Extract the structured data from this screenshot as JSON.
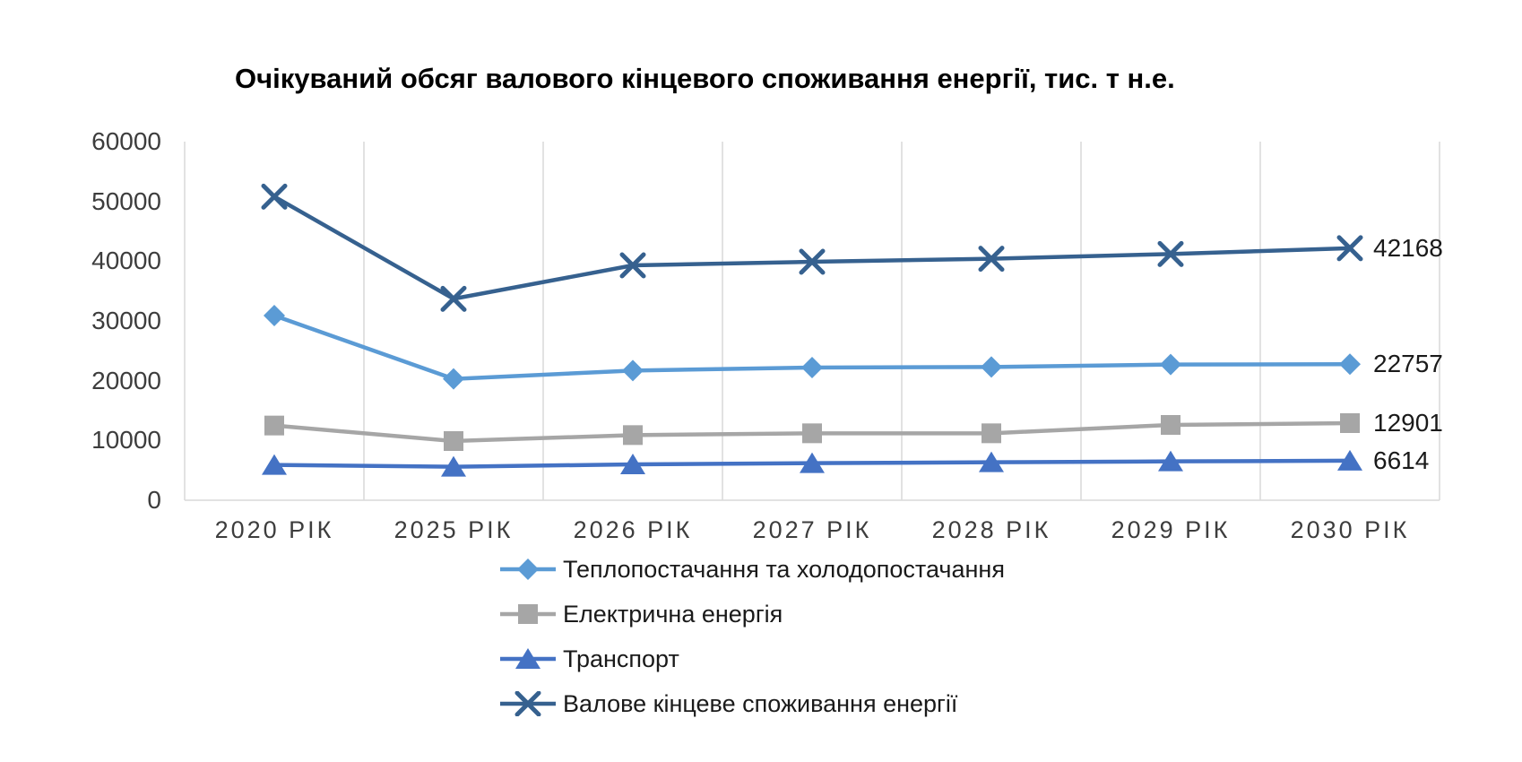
{
  "page": {
    "background": "#ffffff"
  },
  "chart_data": {
    "type": "line",
    "title": "Очікуваний обсяг валового кінцевого споживання енергії, тис. т н.е.",
    "categories": [
      "2020 РІК",
      "2025 РІК",
      "2026 РІК",
      "2027 РІК",
      "2028 РІК",
      "2029 РІК",
      "2030 РІК"
    ],
    "y_tick_labels": [
      "60000",
      "50000",
      "40000",
      "30000",
      "20000",
      "10000",
      "0"
    ],
    "ylim": [
      0,
      60000
    ],
    "y_step": 10000,
    "grid": "vertical-only",
    "gridline_color": "#D9D9D9",
    "axis_color": "#D9D9D9",
    "tick_text_color": "#3d3d3d",
    "legend_position": "bottom-left-column",
    "series": [
      {
        "name": "Теплопостачання та холодопостачання",
        "marker": "diamond",
        "color": "#5B9BD5",
        "values": [
          30900,
          20300,
          21700,
          22200,
          22300,
          22700,
          22757
        ],
        "end_label": "22757"
      },
      {
        "name": "Електрична енергія",
        "marker": "square",
        "color": "#A6A6A6",
        "values": [
          12500,
          9900,
          10900,
          11200,
          11200,
          12600,
          12901
        ],
        "end_label": "12901"
      },
      {
        "name": "Транспорт",
        "marker": "triangle",
        "color": "#4472C4",
        "values": [
          5900,
          5600,
          6000,
          6200,
          6350,
          6500,
          6614
        ],
        "end_label": "6614"
      },
      {
        "name": "Валове кінцеве споживання енергії",
        "marker": "x",
        "color": "#36618F",
        "values": [
          50800,
          33700,
          39300,
          39900,
          40400,
          41200,
          42168
        ],
        "end_label": "42168"
      }
    ]
  }
}
